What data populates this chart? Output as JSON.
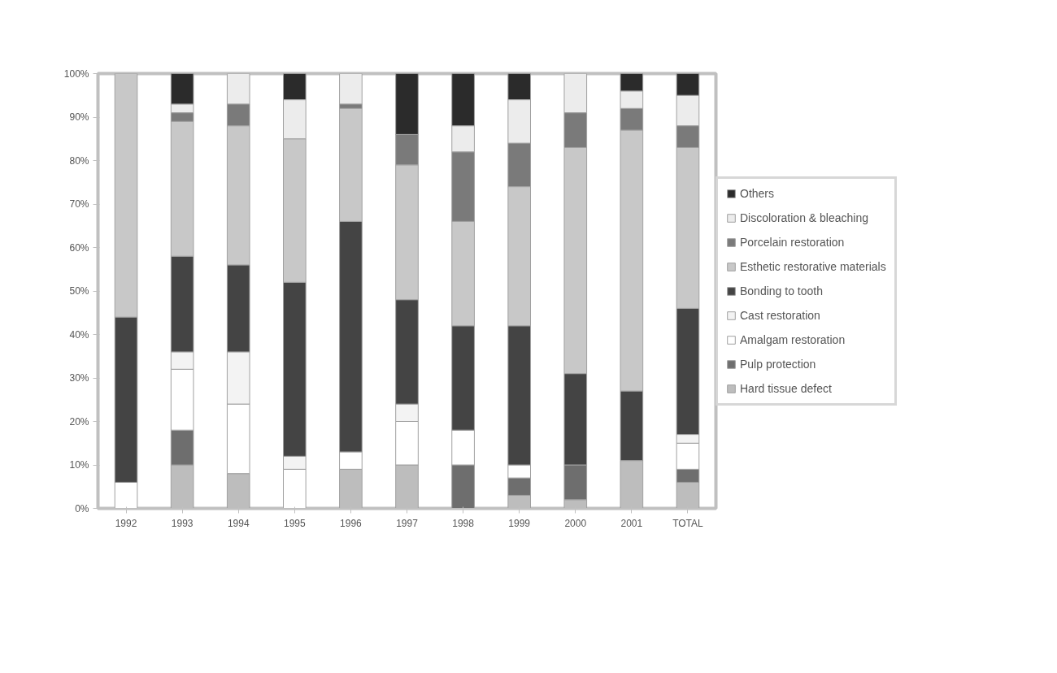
{
  "chart_data": {
    "type": "bar",
    "stacked": true,
    "categories": [
      "1992",
      "1993",
      "1994",
      "1995",
      "1996",
      "1997",
      "1998",
      "1999",
      "2000",
      "2001",
      "TOTAL"
    ],
    "series": [
      {
        "name": "Hard tissue defect",
        "color": "#bdbdbd",
        "values": [
          0,
          10,
          8,
          0,
          9,
          10,
          0,
          3,
          2,
          11,
          6
        ]
      },
      {
        "name": "Pulp protection",
        "color": "#6e6e6e",
        "values": [
          0,
          8,
          0,
          0,
          0,
          0,
          10,
          4,
          8,
          0,
          3
        ]
      },
      {
        "name": "Amalgam restoration",
        "color": "#ffffff",
        "values": [
          6,
          14,
          16,
          9,
          4,
          10,
          8,
          3,
          0,
          0,
          6
        ]
      },
      {
        "name": "Cast restoration",
        "color": "#f3f3f3",
        "values": [
          0,
          4,
          12,
          3,
          0,
          4,
          0,
          0,
          0,
          0,
          2
        ]
      },
      {
        "name": "Bonding to tooth",
        "color": "#444444",
        "values": [
          38,
          22,
          20,
          40,
          53,
          24,
          24,
          32,
          21,
          16,
          29
        ]
      },
      {
        "name": "Esthetic restorative materials",
        "color": "#c8c8c8",
        "values": [
          56,
          31,
          32,
          33,
          26,
          31,
          24,
          32,
          52,
          60,
          37
        ]
      },
      {
        "name": "Porcelain restoration",
        "color": "#7a7a7a",
        "values": [
          0,
          2,
          5,
          0,
          1,
          7,
          16,
          10,
          8,
          5,
          5
        ]
      },
      {
        "name": "Discoloration & bleaching",
        "color": "#ececec",
        "values": [
          0,
          2,
          7,
          9,
          7,
          0,
          6,
          10,
          9,
          4,
          7
        ]
      },
      {
        "name": "Others",
        "color": "#2b2b2b",
        "values": [
          0,
          7,
          0,
          6,
          0,
          14,
          12,
          6,
          0,
          4,
          5
        ]
      }
    ],
    "ylim": [
      0,
      100
    ],
    "yticks": [
      {
        "value": 0,
        "label": "0%"
      },
      {
        "value": 10,
        "label": "10%"
      },
      {
        "value": 20,
        "label": "20%"
      },
      {
        "value": 30,
        "label": "30%"
      },
      {
        "value": 40,
        "label": "40%"
      },
      {
        "value": 50,
        "label": "50%"
      },
      {
        "value": 60,
        "label": "60%"
      },
      {
        "value": 70,
        "label": "70%"
      },
      {
        "value": 80,
        "label": "80%"
      },
      {
        "value": 90,
        "label": "90%"
      },
      {
        "value": 100,
        "label": "100%"
      }
    ],
    "grid": false,
    "legend": "right"
  }
}
